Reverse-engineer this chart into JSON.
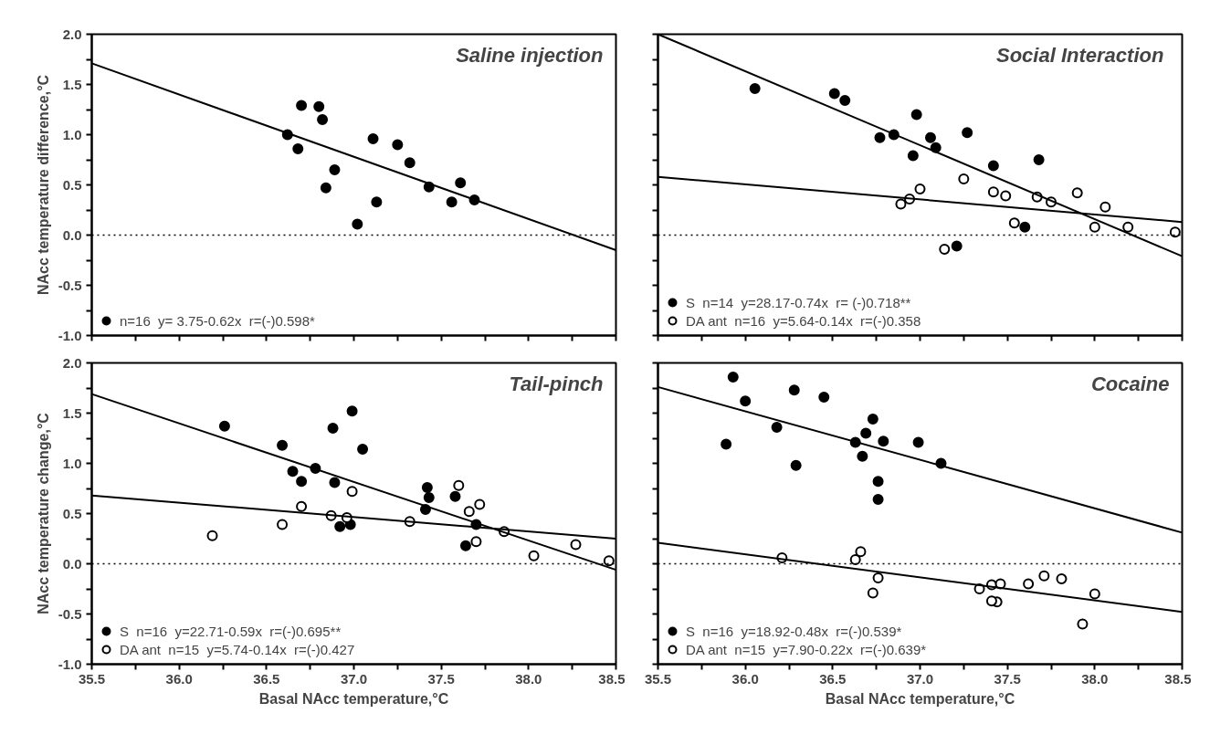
{
  "chart_data": [
    {
      "type": "scatter",
      "title": "Saline injection",
      "ylabel": "NAcc temperature difference,°C",
      "xlim": [
        35.5,
        38.5
      ],
      "ylim": [
        -1,
        2
      ],
      "xticks": [
        35.5,
        35.75,
        36,
        36.25,
        36.5,
        36.75,
        37,
        37.25,
        37.5,
        37.75,
        38,
        38.25,
        38.5
      ],
      "yticks": [
        {
          "value": -1,
          "label": "-1.0"
        },
        {
          "value": -0.75,
          "label": null
        },
        -0.5,
        {
          "value": -0.25,
          "label": null
        },
        {
          "value": 0,
          "label": "0.0"
        },
        {
          "value": 0.25,
          "label": null
        },
        0.5,
        {
          "value": 0.75,
          "label": null
        },
        {
          "value": 1,
          "label": "1.0"
        },
        {
          "value": 1.25,
          "label": null
        },
        1.5,
        {
          "value": 1.75,
          "label": null
        },
        {
          "value": 2,
          "label": "2.0"
        }
      ],
      "tick_labels": "y",
      "grid": false,
      "legend": "bottom left",
      "marker": "circle",
      "ref_lines": [
        {
          "axis": "y",
          "value": 0,
          "line_style": "dotted",
          "color": "#000000"
        }
      ],
      "series": [
        {
          "name": "n=16  y= 3.75-0.62x  r=(-)0.598*",
          "color": "#000000",
          "x": [
            36.62,
            36.7,
            36.68,
            36.8,
            36.82,
            36.89,
            36.84,
            37.02,
            37.11,
            37.13,
            37.25,
            37.32,
            37.43,
            37.61,
            37.56,
            37.69
          ],
          "values": [
            1.0,
            1.29,
            0.86,
            1.28,
            1.15,
            0.65,
            0.47,
            0.11,
            0.96,
            0.33,
            0.9,
            0.72,
            0.48,
            0.52,
            0.33,
            0.35
          ]
        },
        {
          "type": "line",
          "marker": "none",
          "color": "#000000",
          "x": [
            35.5,
            38.5
          ],
          "values": [
            1.71,
            -0.15
          ]
        }
      ]
    },
    {
      "type": "scatter",
      "title": "Social  Interaction",
      "xlim": [
        35.5,
        38.5
      ],
      "ylim": [
        -1,
        2
      ],
      "xticks": [
        35.5,
        35.75,
        36,
        36.25,
        36.5,
        36.75,
        37,
        37.25,
        37.5,
        37.75,
        38,
        38.25,
        38.5
      ],
      "yticks": [
        -1,
        -0.75,
        -0.5,
        -0.25,
        0,
        0.25,
        0.5,
        0.75,
        1,
        1.25,
        1.5,
        1.75,
        2
      ],
      "tick_labels": false,
      "grid": false,
      "legend": "bottom left",
      "marker": "circle",
      "ref_lines": [
        {
          "axis": "y",
          "value": 0,
          "line_style": "dotted",
          "color": "#000000"
        }
      ],
      "series": [
        {
          "name": "S  n=14  y=28.17-0.74x  r= (-)0.718**",
          "color": "#000000",
          "x": [
            36.055,
            36.51,
            36.57,
            36.98,
            36.77,
            36.85,
            37.06,
            37.09,
            36.96,
            37.27,
            37.42,
            37.68,
            37.6,
            37.21
          ],
          "values": [
            1.46,
            1.41,
            1.34,
            1.2,
            0.97,
            1.0,
            0.97,
            0.87,
            0.79,
            1.02,
            0.69,
            0.75,
            0.08,
            -0.11
          ]
        },
        {
          "name": "DA ant  n=16  y=5.64-0.14x  r=(-)0.358",
          "color": "#ffffff",
          "x": [
            36.89,
            36.94,
            37.0,
            37.25,
            37.42,
            37.49,
            37.67,
            37.75,
            37.9,
            38.06,
            37.54,
            37.14,
            38.0,
            38.19,
            38.46
          ],
          "values": [
            0.31,
            0.36,
            0.46,
            0.56,
            0.43,
            0.39,
            0.38,
            0.33,
            0.42,
            0.28,
            0.12,
            -0.14,
            0.08,
            0.08,
            0.03
          ]
        },
        {
          "type": "line",
          "marker": "none",
          "color": "#000000",
          "x": [
            35.5,
            38.5
          ],
          "values": [
            2.0,
            -0.21
          ]
        },
        {
          "type": "line",
          "marker": "none",
          "color": "#000000",
          "x": [
            35.5,
            38.5
          ],
          "values": [
            0.58,
            0.13
          ]
        }
      ]
    },
    {
      "type": "scatter",
      "title": "Tail-pinch",
      "ylabel": "NAcc temperature change,°C",
      "xlabel": "Basal NAcc temperature,°C",
      "xlim": [
        35.5,
        38.5
      ],
      "ylim": [
        -1,
        2
      ],
      "xticks": [
        35.5,
        {
          "value": 35.75,
          "label": null
        },
        {
          "value": 36,
          "label": "36.0"
        },
        {
          "value": 36.25,
          "label": null
        },
        36.5,
        {
          "value": 36.75,
          "label": null
        },
        {
          "value": 37,
          "label": "37.0"
        },
        {
          "value": 37.25,
          "label": null
        },
        37.5,
        {
          "value": 37.75,
          "label": null
        },
        {
          "value": 38,
          "label": "38.0"
        },
        {
          "value": 38.25,
          "label": null
        },
        38.5
      ],
      "yticks": [
        {
          "value": -1,
          "label": "-1.0"
        },
        {
          "value": -0.75,
          "label": null
        },
        -0.5,
        {
          "value": -0.25,
          "label": null
        },
        {
          "value": 0,
          "label": "0.0"
        },
        {
          "value": 0.25,
          "label": null
        },
        0.5,
        {
          "value": 0.75,
          "label": null
        },
        {
          "value": 1,
          "label": "1.0"
        },
        {
          "value": 1.25,
          "label": null
        },
        1.5,
        {
          "value": 1.75,
          "label": null
        },
        {
          "value": 2,
          "label": "2.0"
        }
      ],
      "grid": false,
      "legend": "bottom left",
      "marker": "circle",
      "ref_lines": [
        {
          "axis": "y",
          "value": 0,
          "line_style": "dotted",
          "color": "#000000"
        }
      ],
      "series": [
        {
          "name": "S  n=16  y=22.71-0.59x  r=(-)0.695**",
          "color": "#000000",
          "x": [
            36.26,
            36.59,
            36.88,
            36.99,
            37.05,
            36.78,
            36.65,
            36.7,
            36.89,
            36.92,
            36.98,
            37.42,
            37.43,
            37.41,
            37.58,
            37.7,
            37.64
          ],
          "values": [
            1.37,
            1.18,
            1.35,
            1.52,
            1.14,
            0.95,
            0.92,
            0.82,
            0.81,
            0.37,
            0.39,
            0.76,
            0.66,
            0.54,
            0.67,
            0.39,
            0.18
          ]
        },
        {
          "name": "DA ant  n=15  y=5.74-0.14x  r=(-)0.427",
          "color": "#ffffff",
          "x": [
            36.19,
            36.59,
            36.7,
            36.87,
            36.96,
            36.99,
            37.32,
            37.6,
            37.66,
            37.72,
            37.7,
            37.86,
            38.03,
            38.27,
            38.46
          ],
          "values": [
            0.28,
            0.39,
            0.57,
            0.48,
            0.46,
            0.72,
            0.42,
            0.78,
            0.52,
            0.59,
            0.22,
            0.32,
            0.08,
            0.19,
            0.03
          ]
        },
        {
          "type": "line",
          "marker": "none",
          "color": "#000000",
          "x": [
            35.5,
            38.5
          ],
          "values": [
            1.69,
            -0.06
          ]
        },
        {
          "type": "line",
          "marker": "none",
          "color": "#000000",
          "x": [
            35.5,
            38.5
          ],
          "values": [
            0.68,
            0.25
          ]
        }
      ]
    },
    {
      "type": "scatter",
      "title": "Cocaine",
      "xlabel": "Basal NAcc temperature,°C",
      "xlim": [
        35.5,
        38.5
      ],
      "ylim": [
        -1,
        2
      ],
      "xticks": [
        35.5,
        {
          "value": 35.75,
          "label": null
        },
        {
          "value": 36,
          "label": "36.0"
        },
        {
          "value": 36.25,
          "label": null
        },
        36.5,
        {
          "value": 36.75,
          "label": null
        },
        {
          "value": 37,
          "label": "37.0"
        },
        {
          "value": 37.25,
          "label": null
        },
        37.5,
        {
          "value": 37.75,
          "label": null
        },
        {
          "value": 38,
          "label": "38.0"
        },
        {
          "value": 38.25,
          "label": null
        },
        38.5
      ],
      "yticks": [
        -1,
        -0.75,
        -0.5,
        -0.25,
        0,
        0.25,
        0.5,
        0.75,
        1,
        1.25,
        1.5,
        1.75,
        2
      ],
      "tick_labels": "x",
      "grid": false,
      "legend": "bottom left",
      "marker": "circle",
      "ref_lines": [
        {
          "axis": "y",
          "value": 0,
          "line_style": "dotted",
          "color": "#000000"
        }
      ],
      "series": [
        {
          "name": "S  n=16  y=18.92-0.48x  r=(-)0.539*",
          "color": "#000000",
          "x": [
            35.93,
            36.0,
            35.89,
            36.28,
            36.45,
            36.18,
            36.29,
            36.73,
            36.69,
            36.63,
            36.79,
            36.67,
            36.99,
            37.12,
            36.76,
            36.76
          ],
          "values": [
            1.86,
            1.62,
            1.19,
            1.73,
            1.66,
            1.36,
            0.98,
            1.44,
            1.3,
            1.21,
            1.22,
            1.07,
            1.21,
            1.0,
            0.82,
            0.64
          ]
        },
        {
          "name": "DA ant  n=15  y=7.90-0.22x  r=(-)0.639*",
          "color": "#ffffff",
          "x": [
            36.21,
            36.63,
            36.66,
            36.76,
            36.73,
            37.34,
            37.41,
            37.46,
            37.44,
            37.41,
            37.62,
            37.71,
            37.81,
            38.0,
            37.93
          ],
          "values": [
            0.06,
            0.04,
            0.12,
            -0.14,
            -0.29,
            -0.25,
            -0.21,
            -0.2,
            -0.38,
            -0.37,
            -0.2,
            -0.12,
            -0.15,
            -0.3,
            -0.6
          ]
        },
        {
          "type": "line",
          "marker": "none",
          "color": "#000000",
          "x": [
            35.5,
            38.5
          ],
          "values": [
            1.76,
            0.31
          ]
        },
        {
          "type": "line",
          "marker": "none",
          "color": "#000000",
          "x": [
            35.5,
            38.5
          ],
          "values": [
            0.21,
            -0.48
          ]
        }
      ]
    }
  ]
}
